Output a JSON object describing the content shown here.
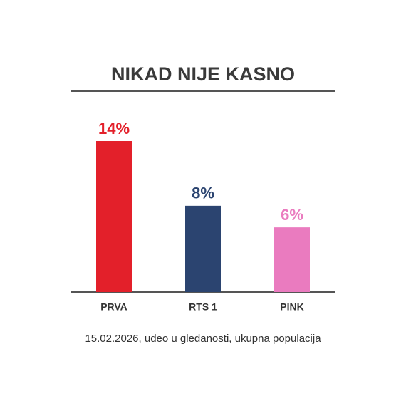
{
  "chart_data": {
    "type": "bar",
    "title": "NIKAD NIJE KASNO",
    "categories": [
      "PRVA",
      "RTS 1",
      "PINK"
    ],
    "values": [
      14,
      8,
      6
    ],
    "value_labels": [
      "14%",
      "8%",
      "6%"
    ],
    "colors": [
      "#e3202a",
      "#2b4470",
      "#ea7bbf"
    ],
    "note": "15.02.2026, udeo u gledanosti, ukupna populacija"
  }
}
